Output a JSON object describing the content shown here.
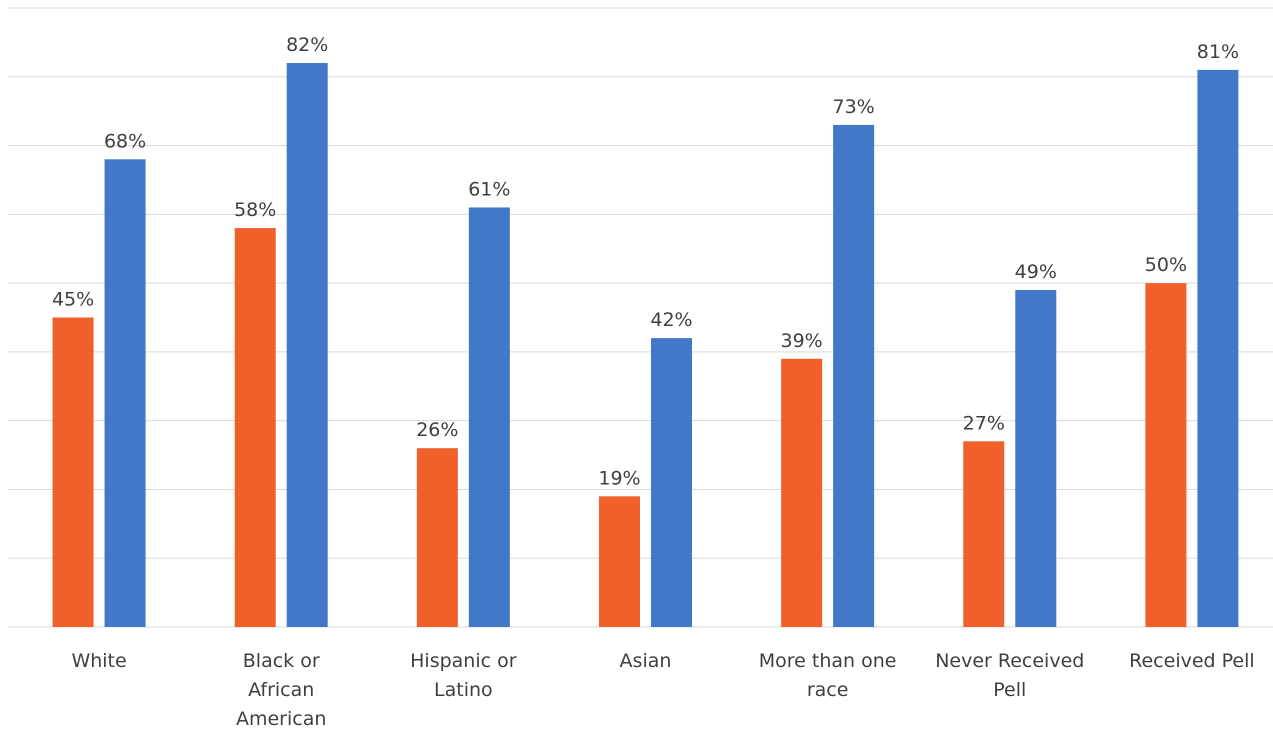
{
  "chart_data": {
    "type": "bar",
    "categories": [
      [
        "White"
      ],
      [
        "Black or",
        "African",
        "American"
      ],
      [
        "Hispanic or",
        "Latino"
      ],
      [
        "Asian"
      ],
      [
        "More than one",
        "race"
      ],
      [
        "Never Received",
        "Pell"
      ],
      [
        "Received Pell"
      ]
    ],
    "series": [
      {
        "color": "#f0602a",
        "values": [
          45,
          58,
          26,
          19,
          39,
          27,
          50
        ]
      },
      {
        "color": "#4178c8",
        "values": [
          68,
          82,
          61,
          42,
          73,
          49,
          81
        ]
      }
    ],
    "value_labels": [
      [
        "45%",
        "58%",
        "26%",
        "19%",
        "39%",
        "27%",
        "50%"
      ],
      [
        "68%",
        "82%",
        "61%",
        "42%",
        "73%",
        "49%",
        "81%"
      ]
    ],
    "ylim": [
      0,
      90
    ],
    "grid": true,
    "legend": "none",
    "title": "",
    "xlabel": "",
    "ylabel": ""
  }
}
